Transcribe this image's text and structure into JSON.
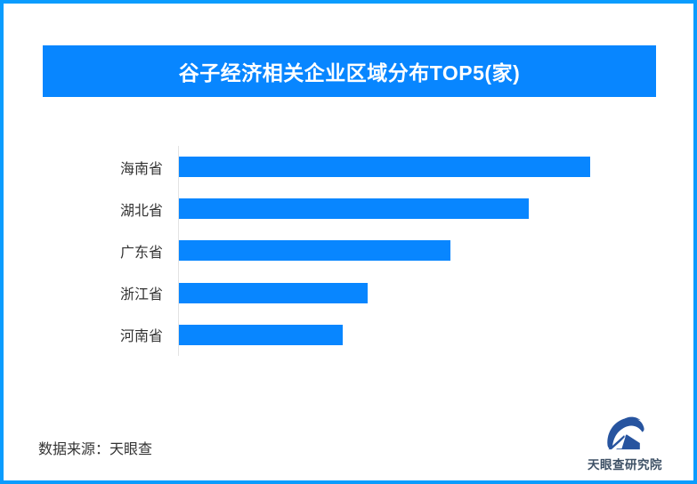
{
  "header": {
    "title": "谷子经济相关企业区域分布TOP5(家)"
  },
  "chart_data": {
    "type": "bar",
    "orientation": "horizontal",
    "title": "谷子经济相关企业区域分布TOP5(家)",
    "categories": [
      "海南省",
      "湖北省",
      "广东省",
      "浙江省",
      "河南省"
    ],
    "values": [
      100,
      85,
      66,
      46,
      40
    ],
    "value_basis": "relative bar length, longest bar = 100 (no numeric labels shown in image)",
    "value_labels_shown": false,
    "xlabel": "",
    "ylabel": "",
    "grid": false,
    "legend": false,
    "bar_color": "#0886ff",
    "axis_color": "#e3e3e3"
  },
  "footer": {
    "source": "数据来源：天眼查"
  },
  "logo": {
    "text": "天眼查研究院",
    "mark": "tianyancha-eye-logo"
  },
  "colors": {
    "frame_border": "#0a9cfe",
    "banner_bg": "#0886ff",
    "bar_blue": "#0886ff",
    "axis_gray": "#e3e3e3",
    "text_dark": "#333333",
    "logo_blue": "#27549f",
    "logo_text": "#3d5065"
  }
}
